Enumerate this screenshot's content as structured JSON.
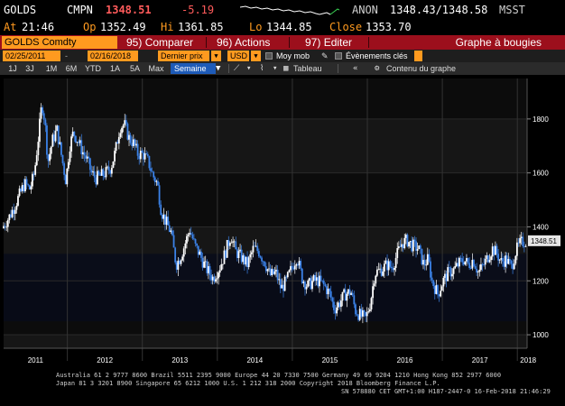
{
  "quote": {
    "ticker": "GOLDS",
    "cmpn": "CMPN",
    "last_price": "1348.51",
    "change": "-5.19",
    "anon": "ANON",
    "bid_ask": "1348.43/1348.58",
    "source": "MSST"
  },
  "stats": {
    "at_label": "At",
    "at_value": "21:46",
    "op_label": "Op",
    "op_value": "1352.49",
    "hi_label": "Hi",
    "hi_value": "1361.85",
    "lo_label": "Lo",
    "lo_value": "1344.85",
    "close_label": "Close",
    "close_value": "1353.70"
  },
  "function_bar": {
    "security": "GOLDS Comdty",
    "buttons": [
      {
        "num": "95)",
        "label": "Comparer"
      },
      {
        "num": "96)",
        "label": "Actions"
      },
      {
        "num": "97)",
        "label": "Editer"
      }
    ],
    "title": "Graphe à bougies"
  },
  "options": {
    "start_date": "02/25/2011",
    "end_date": "02/16/2018",
    "price_type": "Dernier prix",
    "currency": "USD",
    "moving_avg": "Moy mob",
    "key_events": "Évènements clés"
  },
  "periods": {
    "tabs": [
      "1J",
      "3J",
      "1M",
      "6M",
      "YTD",
      "1A",
      "5A",
      "Max"
    ],
    "frequency": "Semaine",
    "table": "Tableau",
    "graph_content": "Contenu du graphe"
  },
  "chart_data": {
    "type": "candlestick",
    "title": "",
    "xlabel": "",
    "ylabel": "",
    "ylim": [
      950,
      1950
    ],
    "yticks": [
      1000,
      1200,
      1400,
      1600,
      1800
    ],
    "xlim": [
      2011.15,
      2018.13
    ],
    "year_labels": [
      "2011",
      "2012",
      "2013",
      "2014",
      "2015",
      "2016",
      "2017",
      "2018"
    ],
    "last_price_label": "1348.51",
    "last_price": 1348.51,
    "up_color": "#ffffff",
    "down_color": "#3b82e8",
    "background_bands": true,
    "grid": "horizontal",
    "path": [
      [
        2011.15,
        1395
      ],
      [
        2011.25,
        1440
      ],
      [
        2011.32,
        1480
      ],
      [
        2011.4,
        1530
      ],
      [
        2011.45,
        1560
      ],
      [
        2011.52,
        1540
      ],
      [
        2011.58,
        1600
      ],
      [
        2011.64,
        1750
      ],
      [
        2011.68,
        1860
      ],
      [
        2011.72,
        1790
      ],
      [
        2011.76,
        1640
      ],
      [
        2011.82,
        1720
      ],
      [
        2011.88,
        1760
      ],
      [
        2011.93,
        1680
      ],
      [
        2012.0,
        1570
      ],
      [
        2012.05,
        1700
      ],
      [
        2012.1,
        1750
      ],
      [
        2012.16,
        1720
      ],
      [
        2012.22,
        1680
      ],
      [
        2012.28,
        1650
      ],
      [
        2012.34,
        1600
      ],
      [
        2012.4,
        1580
      ],
      [
        2012.47,
        1590
      ],
      [
        2012.53,
        1600
      ],
      [
        2012.6,
        1620
      ],
      [
        2012.66,
        1680
      ],
      [
        2012.72,
        1770
      ],
      [
        2012.78,
        1780
      ],
      [
        2012.84,
        1730
      ],
      [
        2012.9,
        1710
      ],
      [
        2012.96,
        1670
      ],
      [
        2013.03,
        1670
      ],
      [
        2013.1,
        1640
      ],
      [
        2013.16,
        1590
      ],
      [
        2013.22,
        1560
      ],
      [
        2013.27,
        1460
      ],
      [
        2013.33,
        1420
      ],
      [
        2013.4,
        1380
      ],
      [
        2013.47,
        1260
      ],
      [
        2013.53,
        1290
      ],
      [
        2013.58,
        1330
      ],
      [
        2013.65,
        1390
      ],
      [
        2013.72,
        1330
      ],
      [
        2013.78,
        1300
      ],
      [
        2013.86,
        1250
      ],
      [
        2013.96,
        1210
      ],
      [
        2014.05,
        1250
      ],
      [
        2014.12,
        1300
      ],
      [
        2014.2,
        1370
      ],
      [
        2014.26,
        1310
      ],
      [
        2014.33,
        1290
      ],
      [
        2014.42,
        1260
      ],
      [
        2014.5,
        1320
      ],
      [
        2014.57,
        1310
      ],
      [
        2014.65,
        1270
      ],
      [
        2014.72,
        1220
      ],
      [
        2014.8,
        1230
      ],
      [
        2014.87,
        1170
      ],
      [
        2014.94,
        1200
      ],
      [
        2015.03,
        1260
      ],
      [
        2015.08,
        1290
      ],
      [
        2015.15,
        1210
      ],
      [
        2015.22,
        1180
      ],
      [
        2015.3,
        1200
      ],
      [
        2015.37,
        1200
      ],
      [
        2015.45,
        1180
      ],
      [
        2015.52,
        1150
      ],
      [
        2015.58,
        1095
      ],
      [
        2015.65,
        1120
      ],
      [
        2015.72,
        1150
      ],
      [
        2015.8,
        1160
      ],
      [
        2015.86,
        1090
      ],
      [
        2015.93,
        1070
      ],
      [
        2016.0,
        1060
      ],
      [
        2016.06,
        1120
      ],
      [
        2016.12,
        1230
      ],
      [
        2016.2,
        1240
      ],
      [
        2016.28,
        1260
      ],
      [
        2016.35,
        1250
      ],
      [
        2016.42,
        1300
      ],
      [
        2016.48,
        1340
      ],
      [
        2016.55,
        1350
      ],
      [
        2016.62,
        1330
      ],
      [
        2016.7,
        1320
      ],
      [
        2016.77,
        1260
      ],
      [
        2016.83,
        1280
      ],
      [
        2016.88,
        1200
      ],
      [
        2016.96,
        1150
      ],
      [
        2017.03,
        1200
      ],
      [
        2017.1,
        1230
      ],
      [
        2017.17,
        1240
      ],
      [
        2017.23,
        1260
      ],
      [
        2017.3,
        1280
      ],
      [
        2017.37,
        1260
      ],
      [
        2017.43,
        1280
      ],
      [
        2017.5,
        1230
      ],
      [
        2017.57,
        1260
      ],
      [
        2017.63,
        1290
      ],
      [
        2017.69,
        1320
      ],
      [
        2017.75,
        1300
      ],
      [
        2017.8,
        1270
      ],
      [
        2017.87,
        1280
      ],
      [
        2017.94,
        1250
      ],
      [
        2018.0,
        1310
      ],
      [
        2018.06,
        1340
      ],
      [
        2018.13,
        1348
      ]
    ]
  },
  "footer": {
    "line1": "Australia 61 2 9777 8600 Brazil 5511 2395 9000 Europe 44 20 7330 7500 Germany 49 69 9204 1210 Hong Kong 852 2977 6000",
    "line2": "Japan 81 3 3201 8900         Singapore 65 6212 1000         U.S. 1 212 318 2000         Copyright 2018 Bloomberg Finance L.P.",
    "line3": "SN 578880 CET  GMT+1:00 H187-2447-0 16-Feb-2018 21:46:29"
  }
}
